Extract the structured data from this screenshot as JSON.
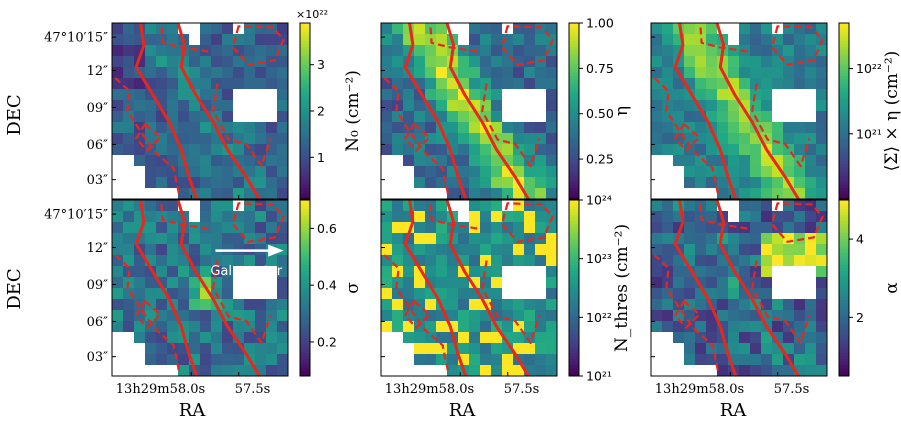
{
  "figure": {
    "dec_label": "DEC",
    "ra_label": "RA",
    "dec_ticks": [
      "47°10′15″",
      "12″",
      "09″",
      "06″",
      "03″"
    ],
    "dec_tick_fracs": [
      0.08,
      0.27,
      0.48,
      0.69,
      0.89
    ],
    "ra_ticks": [
      "13h29m58.0s",
      "57.5s"
    ],
    "ra_tick_fracs": [
      0.45,
      0.72
    ],
    "annotation": "Gal. center",
    "colormap": "viridis",
    "mask_color": "#ffffff",
    "contour_color": "#e8271d"
  },
  "chart_data": [
    {
      "type": "heatmap",
      "panel": "top-left",
      "cbar_label": "N₀ (cm⁻²)",
      "cbar_scale": "linear",
      "cbar_range": [
        0.1,
        3.9
      ],
      "cbar_ticks": [
        {
          "v": 1,
          "t": "1"
        },
        {
          "v": 2,
          "t": "2"
        },
        {
          "v": 3,
          "t": "3"
        }
      ],
      "cbar_offset": "×10²²",
      "style": "n0",
      "seed": 3
    },
    {
      "type": "heatmap",
      "panel": "top-middle",
      "cbar_label": "η",
      "cbar_scale": "linear",
      "cbar_range": [
        0.03,
        1.0
      ],
      "cbar_ticks": [
        {
          "v": 0.25,
          "t": "0.25"
        },
        {
          "v": 0.5,
          "t": "0.50"
        },
        {
          "v": 0.75,
          "t": "0.75"
        },
        {
          "v": 1.0,
          "t": "1.00"
        }
      ],
      "style": "eta",
      "seed": 7
    },
    {
      "type": "heatmap",
      "panel": "top-right",
      "cbar_label": "⟨Σ⟩ × η (cm⁻²)",
      "cbar_scale": "log",
      "cbar_range": [
        1e+20,
        5e+22
      ],
      "cbar_ticks": [
        {
          "v": 1e+21,
          "t": "10²¹"
        },
        {
          "v": 1e+22,
          "t": "10²²"
        }
      ],
      "style": "sigma_eta",
      "seed": 11
    },
    {
      "type": "heatmap",
      "panel": "bottom-left",
      "cbar_label": "σ",
      "cbar_scale": "linear",
      "cbar_range": [
        0.08,
        0.7
      ],
      "cbar_ticks": [
        {
          "v": 0.2,
          "t": "0.2"
        },
        {
          "v": 0.4,
          "t": "0.4"
        },
        {
          "v": 0.6,
          "t": "0.6"
        }
      ],
      "style": "sigma",
      "seed": 19
    },
    {
      "type": "heatmap",
      "panel": "bottom-middle",
      "cbar_label": "N_thres (cm⁻²)",
      "cbar_scale": "log",
      "cbar_range": [
        1e+21,
        1e+24
      ],
      "cbar_ticks": [
        {
          "v": 1e+21,
          "t": "10²¹"
        },
        {
          "v": 1e+22,
          "t": "10²²"
        },
        {
          "v": 1e+23,
          "t": "10²³"
        },
        {
          "v": 1e+24,
          "t": "10²⁴"
        }
      ],
      "style": "nthres",
      "seed": 23
    },
    {
      "type": "heatmap",
      "panel": "bottom-right",
      "cbar_label": "α",
      "cbar_scale": "linear",
      "cbar_range": [
        0.5,
        5.0
      ],
      "cbar_ticks": [
        {
          "v": 2,
          "t": "2"
        },
        {
          "v": 4,
          "t": "4"
        }
      ],
      "style": "alpha",
      "seed": 29
    }
  ]
}
